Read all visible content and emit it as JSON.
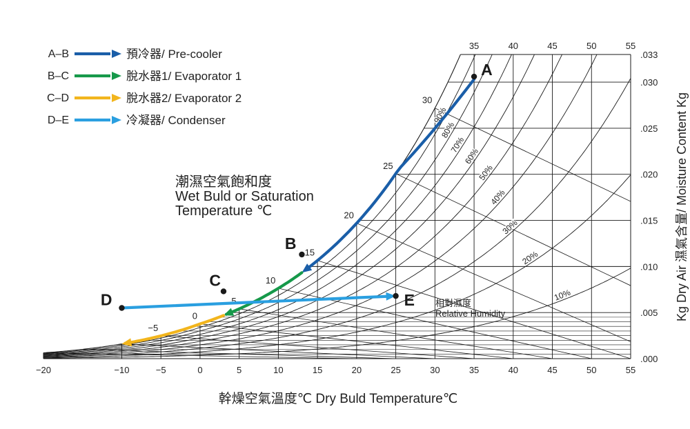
{
  "chart_data": {
    "type": "line",
    "title": "",
    "xlabel": "幹燥空氣溫度℃ Dry Buld Temperature℃",
    "ylabel": "Kg Dry Air  濕氣含量/ Moisture Content Kg",
    "xlim": [
      -20,
      55
    ],
    "ylim": [
      0,
      0.033
    ],
    "x_ticks": [
      "−20",
      "−10",
      "−5",
      "0",
      "5",
      "10",
      "15",
      "20",
      "25",
      "30",
      "35",
      "40",
      "45",
      "50",
      "55"
    ],
    "x_tick_values": [
      -20,
      -10,
      -5,
      0,
      5,
      10,
      15,
      20,
      25,
      30,
      35,
      40,
      45,
      50,
      55
    ],
    "top_ticks": [
      "35",
      "40",
      "45",
      "50",
      "55"
    ],
    "top_tick_values": [
      35,
      40,
      45,
      50,
      55
    ],
    "y_ticks": [
      ".000",
      ".005",
      ".010",
      ".015",
      ".020",
      ".025",
      ".030",
      ".033"
    ],
    "y_tick_values": [
      0,
      0.005,
      0.01,
      0.015,
      0.02,
      0.025,
      0.03,
      0.033
    ],
    "saturation_label": {
      "line1": "潮濕空氣飽和度",
      "line2": "Wet Buld or Saturation",
      "line3": "Temperature ℃"
    },
    "saturation_temps": [
      "−5",
      "0",
      "5",
      "10",
      "15",
      "20",
      "25",
      "30"
    ],
    "saturation_temp_values": [
      -5,
      0,
      5,
      10,
      15,
      20,
      25,
      30
    ],
    "rh_curves": [
      {
        "label": "90%",
        "value": 0.9
      },
      {
        "label": "80%",
        "value": 0.8
      },
      {
        "label": "70%",
        "value": 0.7
      },
      {
        "label": "60%",
        "value": 0.6
      },
      {
        "label": "50%",
        "value": 0.5
      },
      {
        "label": "40%",
        "value": 0.4
      },
      {
        "label": "30%",
        "value": 0.3
      },
      {
        "label": "20%",
        "value": 0.2
      },
      {
        "label": "10%",
        "value": 0.1
      }
    ],
    "rh_title": {
      "zh": "相對濕度",
      "en": "Relative Humidity"
    },
    "points": [
      {
        "name": "A",
        "x": 35,
        "y": 0.0306
      },
      {
        "name": "B",
        "x": 13,
        "y": 0.0113
      },
      {
        "name": "C",
        "x": 3,
        "y": 0.0073
      },
      {
        "name": "D",
        "x": -10,
        "y": 0.0055
      },
      {
        "name": "E",
        "x": 25,
        "y": 0.0068
      }
    ],
    "series": [
      {
        "name": "預冷器/ Pre-cooler",
        "key": "A–B",
        "color": "#1a5ea8",
        "from": "A",
        "to": "B"
      },
      {
        "name": "脫水器1/ Evaporator 1",
        "key": "B–C",
        "color": "#16994a",
        "from": "B",
        "to": "C"
      },
      {
        "name": "脫水器2/ Evaporator 2",
        "key": "C–D",
        "color": "#f2b51d",
        "from": "C",
        "to": "D"
      },
      {
        "name": "冷凝器/ Condenser",
        "key": "D–E",
        "color": "#2a9fe0",
        "from": "D",
        "to": "E"
      }
    ],
    "legend_position": "top-left",
    "grid": true
  }
}
